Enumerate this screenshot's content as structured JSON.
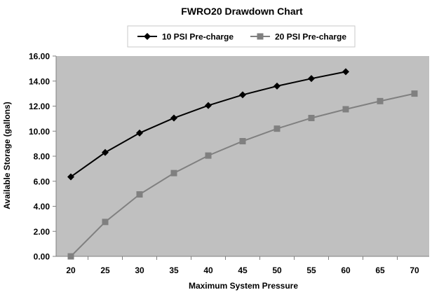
{
  "chart_data": {
    "type": "line",
    "title": "FWRO20 Drawdown Chart",
    "xlabel": "Maximum System Pressure",
    "ylabel": "Available Storage (gallons)",
    "x": [
      20,
      25,
      30,
      35,
      40,
      45,
      50,
      55,
      60,
      65,
      70
    ],
    "xlim": [
      20,
      70
    ],
    "ylim": [
      0,
      16
    ],
    "y_ticks": [
      "0.00",
      "2.00",
      "4.00",
      "6.00",
      "8.00",
      "10.00",
      "12.00",
      "14.00",
      "16.00"
    ],
    "x_ticks": [
      "20",
      "25",
      "30",
      "35",
      "40",
      "45",
      "50",
      "55",
      "60",
      "65",
      "70"
    ],
    "grid": false,
    "plot_background": "#c0c0c0",
    "legend": {
      "placement": "top-center",
      "border": true
    },
    "series": [
      {
        "name": "10 PSI Pre-charge",
        "marker": "diamond",
        "color": "#000000",
        "x": [
          20,
          25,
          30,
          35,
          40,
          45,
          50,
          55,
          60
        ],
        "values": [
          6.35,
          8.3,
          9.85,
          11.05,
          12.05,
          12.9,
          13.6,
          14.2,
          14.75
        ]
      },
      {
        "name": "20 PSI Pre-charge",
        "marker": "square",
        "color": "#808080",
        "x": [
          20,
          25,
          30,
          35,
          40,
          45,
          50,
          55,
          60,
          65,
          70
        ],
        "values": [
          0.0,
          2.75,
          4.95,
          6.65,
          8.05,
          9.2,
          10.2,
          11.05,
          11.75,
          12.4,
          13.0
        ]
      }
    ]
  }
}
